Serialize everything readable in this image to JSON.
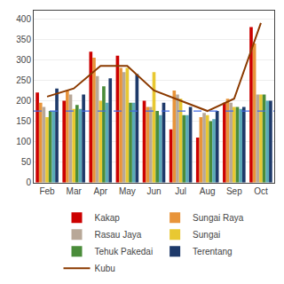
{
  "chart_data": {
    "type": "bar",
    "categories": [
      "Feb",
      "Mar",
      "Apr",
      "May",
      "Jun",
      "Jul",
      "Aug",
      "Sep",
      "Oct"
    ],
    "series": [
      {
        "name": "Kakap",
        "color": "#CC0000",
        "values": [
          220,
          200,
          320,
          310,
          200,
          130,
          110,
          195,
          380
        ]
      },
      {
        "name": "Sungai Raya",
        "color": "#E8943A",
        "values": [
          195,
          225,
          305,
          280,
          185,
          225,
          160,
          205,
          340
        ]
      },
      {
        "name": "Rasau Jaya",
        "color": "#B8A898",
        "values": [
          185,
          215,
          260,
          270,
          185,
          215,
          170,
          195,
          215
        ]
      },
      {
        "name": "Sungai",
        "color": "#E8C832",
        "values": [
          160,
          180,
          200,
          280,
          270,
          205,
          165,
          185,
          215
        ]
      },
      {
        "name": "Tehuk Pakedai",
        "color": "#4A8C3A",
        "values": [
          175,
          190,
          235,
          195,
          175,
          165,
          150,
          185,
          215
        ]
      },
      {
        "color": "#5AABB8",
        "values": [
          175,
          180,
          195,
          195,
          165,
          165,
          155,
          180,
          200
        ]
      },
      {
        "name": "Terentang",
        "color": "#1E3A6A",
        "values": [
          230,
          215,
          255,
          265,
          195,
          185,
          175,
          185,
          200
        ]
      },
      {
        "name": "Kubu",
        "type": "line",
        "color": "#8B3A00",
        "values": [
          210,
          230,
          285,
          285,
          225,
          200,
          175,
          205,
          390
        ]
      }
    ],
    "hline": {
      "value": 175,
      "color": "#4169E1",
      "line_style": "dashed"
    },
    "ylim": [
      0,
      420
    ],
    "yticks": [
      0,
      50,
      100,
      150,
      200,
      250,
      300,
      350,
      400
    ],
    "grid": true,
    "legend": "bottom"
  }
}
